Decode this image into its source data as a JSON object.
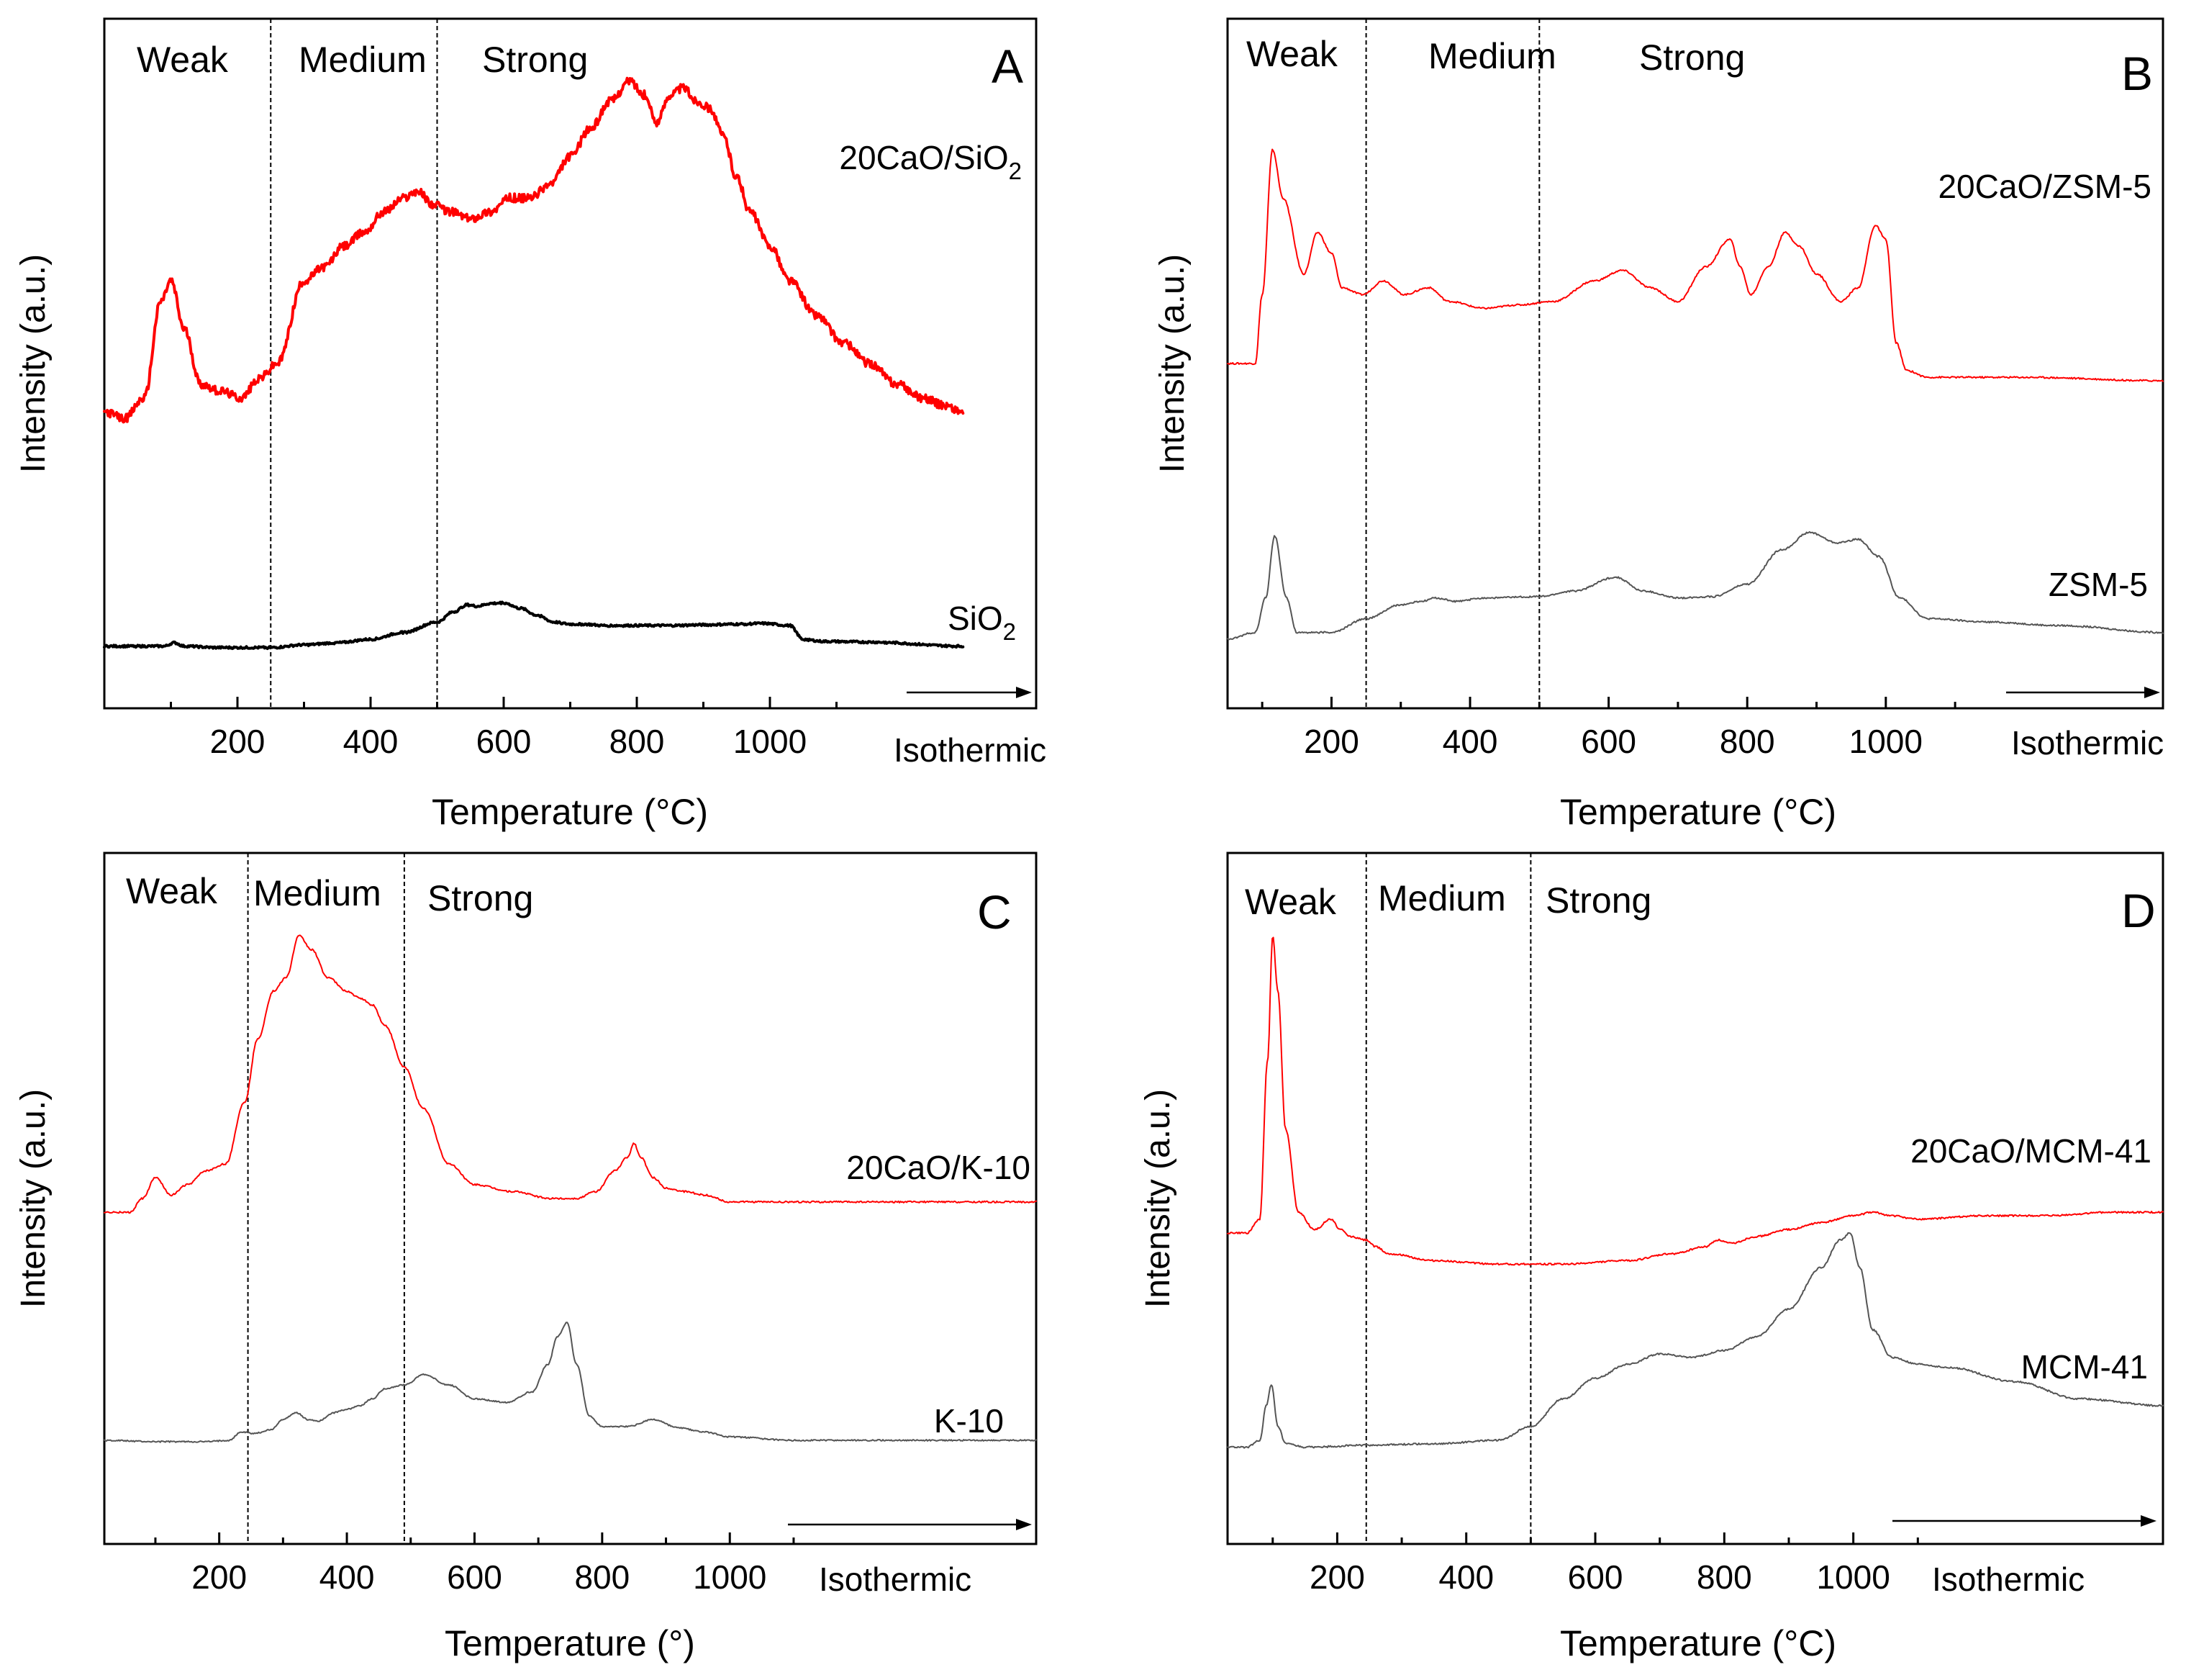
{
  "figure": {
    "description_panels": [
      "A",
      "B",
      "C",
      "D"
    ]
  },
  "chart_data": [
    {
      "type": "line",
      "panel": "A",
      "xlabel": "Temperature (°C)",
      "ylabel": "Intensity (a.u.)",
      "xlim": [
        0,
        1400
      ],
      "ylim": [
        0,
        1
      ],
      "x_ticks": [
        200,
        400,
        600,
        800,
        1000
      ],
      "isothermic_label": "Isothermic",
      "regions": [
        "Weak",
        "Medium",
        "Strong"
      ],
      "region_boundaries": [
        250,
        500
      ],
      "series": [
        {
          "name": "20CaO/SiO",
          "subscript": "2",
          "color": "#ff0000",
          "stroke": 4,
          "noise": 0.006,
          "x": [
            0,
            30,
            60,
            85,
            100,
            120,
            145,
            175,
            205,
            235,
            260,
            300,
            330,
            360,
            390,
            420,
            450,
            470,
            495,
            520,
            550,
            580,
            610,
            640,
            670,
            700,
            730,
            760,
            790,
            810,
            830,
            850,
            870,
            890,
            910,
            930,
            950,
            970,
            1000,
            1030,
            1070,
            1110,
            1150,
            1190,
            1230,
            1260,
            1290
          ],
          "y": [
            0.43,
            0.42,
            0.45,
            0.59,
            0.62,
            0.55,
            0.47,
            0.46,
            0.45,
            0.48,
            0.5,
            0.62,
            0.64,
            0.67,
            0.69,
            0.72,
            0.74,
            0.75,
            0.73,
            0.72,
            0.71,
            0.72,
            0.74,
            0.74,
            0.76,
            0.8,
            0.84,
            0.88,
            0.91,
            0.89,
            0.85,
            0.89,
            0.9,
            0.88,
            0.87,
            0.83,
            0.77,
            0.72,
            0.67,
            0.62,
            0.57,
            0.53,
            0.5,
            0.47,
            0.45,
            0.44,
            0.43
          ]
        },
        {
          "name": "SiO",
          "subscript": "2",
          "color": "#000000",
          "stroke": 4,
          "noise": 0.0015,
          "x": [
            0,
            50,
            90,
            105,
            120,
            170,
            250,
            300,
            350,
            400,
            450,
            500,
            525,
            545,
            560,
            580,
            600,
            625,
            650,
            675,
            700,
            720,
            750,
            800,
            850,
            900,
            950,
            990,
            1030,
            1050,
            1080,
            1150,
            1290
          ],
          "y": [
            0.09,
            0.09,
            0.09,
            0.095,
            0.09,
            0.088,
            0.088,
            0.092,
            0.095,
            0.1,
            0.11,
            0.125,
            0.14,
            0.15,
            0.148,
            0.152,
            0.153,
            0.145,
            0.135,
            0.125,
            0.122,
            0.122,
            0.12,
            0.12,
            0.12,
            0.121,
            0.122,
            0.123,
            0.12,
            0.1,
            0.097,
            0.096,
            0.09
          ]
        }
      ],
      "series_labels_text": [
        "20CaO/SiO",
        "SiO"
      ]
    },
    {
      "type": "line",
      "panel": "B",
      "xlabel": "Temperature (°C)",
      "ylabel": "Intensity (a.u.)",
      "xlim": [
        50,
        1400
      ],
      "ylim": [
        0,
        1
      ],
      "x_ticks": [
        200,
        400,
        600,
        800,
        1000
      ],
      "isothermic_label": "Isothermic",
      "regions": [
        "Weak",
        "Medium",
        "Strong"
      ],
      "region_boundaries": [
        250,
        500
      ],
      "series": [
        {
          "name": "20CaO/ZSM-5",
          "color": "#ff0000",
          "stroke": 2,
          "noise": 0.0012,
          "x": [
            50,
            90,
            100,
            115,
            130,
            160,
            180,
            200,
            215,
            245,
            275,
            305,
            340,
            370,
            420,
            470,
            520,
            580,
            620,
            660,
            700,
            740,
            775,
            790,
            805,
            830,
            855,
            875,
            900,
            935,
            960,
            985,
            1000,
            1015,
            1030,
            1060,
            1200,
            1400
          ],
          "y": [
            0.5,
            0.5,
            0.6,
            0.81,
            0.74,
            0.63,
            0.69,
            0.66,
            0.61,
            0.6,
            0.62,
            0.6,
            0.61,
            0.59,
            0.58,
            0.585,
            0.59,
            0.62,
            0.635,
            0.61,
            0.59,
            0.64,
            0.68,
            0.64,
            0.6,
            0.64,
            0.69,
            0.67,
            0.63,
            0.59,
            0.61,
            0.7,
            0.68,
            0.53,
            0.49,
            0.48,
            0.48,
            0.475
          ]
        },
        {
          "name": "ZSM-5",
          "color": "#555555",
          "stroke": 2,
          "noise": 0.0012,
          "x": [
            50,
            90,
            105,
            118,
            135,
            150,
            200,
            250,
            300,
            330,
            350,
            380,
            420,
            500,
            550,
            610,
            650,
            700,
            750,
            800,
            850,
            890,
            930,
            960,
            990,
            1020,
            1060,
            1150,
            1250,
            1400
          ],
          "y": [
            0.1,
            0.11,
            0.16,
            0.25,
            0.16,
            0.11,
            0.11,
            0.13,
            0.15,
            0.155,
            0.16,
            0.155,
            0.16,
            0.162,
            0.17,
            0.19,
            0.17,
            0.16,
            0.162,
            0.18,
            0.23,
            0.255,
            0.24,
            0.245,
            0.22,
            0.16,
            0.13,
            0.125,
            0.12,
            0.11
          ]
        }
      ],
      "series_labels_text": [
        "20CaO/ZSM-5",
        "ZSM-5"
      ]
    },
    {
      "type": "line",
      "panel": "C",
      "xlabel": "Temperature (°)",
      "ylabel": "Intensity (a.u.)",
      "xlim": [
        20,
        1480
      ],
      "ylim": [
        0,
        1
      ],
      "x_ticks": [
        200,
        400,
        600,
        800,
        1000
      ],
      "isothermic_label": "Isothermic",
      "regions": [
        "Weak",
        "Medium",
        "Strong"
      ],
      "region_boundaries": [
        245,
        490
      ],
      "series": [
        {
          "name": "20CaO/K-10",
          "color": "#ff0000",
          "stroke": 2,
          "noise": 0.0012,
          "x": [
            20,
            60,
            80,
            100,
            125,
            150,
            180,
            210,
            240,
            260,
            285,
            305,
            325,
            345,
            370,
            400,
            420,
            440,
            460,
            490,
            520,
            560,
            600,
            660,
            720,
            760,
            790,
            820,
            840,
            850,
            860,
            880,
            900,
            930,
            960,
            1000,
            1100,
            1300,
            1480
          ],
          "y": [
            0.48,
            0.48,
            0.5,
            0.53,
            0.505,
            0.52,
            0.54,
            0.55,
            0.64,
            0.73,
            0.8,
            0.82,
            0.88,
            0.86,
            0.82,
            0.8,
            0.79,
            0.78,
            0.75,
            0.69,
            0.63,
            0.55,
            0.52,
            0.51,
            0.5,
            0.5,
            0.51,
            0.54,
            0.56,
            0.58,
            0.56,
            0.53,
            0.515,
            0.51,
            0.505,
            0.495,
            0.495,
            0.495,
            0.495
          ]
        },
        {
          "name": "K-10",
          "color": "#555555",
          "stroke": 2,
          "noise": 0.001,
          "x": [
            20,
            100,
            180,
            215,
            235,
            255,
            280,
            300,
            320,
            340,
            355,
            380,
            400,
            420,
            440,
            460,
            490,
            520,
            560,
            600,
            650,
            690,
            715,
            730,
            745,
            760,
            780,
            800,
            840,
            880,
            920,
            960,
            1000,
            1100,
            1300,
            1480
          ],
          "y": [
            0.15,
            0.148,
            0.148,
            0.15,
            0.162,
            0.16,
            0.165,
            0.18,
            0.19,
            0.18,
            0.178,
            0.19,
            0.195,
            0.2,
            0.21,
            0.225,
            0.23,
            0.245,
            0.23,
            0.21,
            0.205,
            0.22,
            0.26,
            0.3,
            0.32,
            0.26,
            0.185,
            0.17,
            0.17,
            0.18,
            0.168,
            0.162,
            0.155,
            0.15,
            0.15,
            0.15
          ]
        }
      ],
      "series_labels_text": [
        "20CaO/K-10",
        "K-10"
      ]
    },
    {
      "type": "line",
      "panel": "D",
      "xlabel": "Temperature (°C)",
      "ylabel": "Intensity (a.u.)",
      "xlim": [
        30,
        1480
      ],
      "ylim": [
        0,
        1
      ],
      "x_ticks": [
        200,
        400,
        600,
        800,
        1000
      ],
      "isothermic_label": "Isothermic",
      "regions": [
        "Weak",
        "Medium",
        "Strong"
      ],
      "region_boundaries": [
        245,
        500
      ],
      "series": [
        {
          "name": "20CaO/MCM-41",
          "color": "#ff0000",
          "stroke": 2,
          "noise": 0.0012,
          "x": [
            30,
            60,
            80,
            92,
            100,
            108,
            120,
            140,
            165,
            190,
            205,
            220,
            245,
            260,
            280,
            350,
            450,
            550,
            650,
            720,
            770,
            790,
            810,
            850,
            900,
            950,
            1000,
            1030,
            1060,
            1100,
            1200,
            1300,
            1400,
            1480
          ],
          "y": [
            0.45,
            0.45,
            0.47,
            0.7,
            0.88,
            0.8,
            0.6,
            0.48,
            0.455,
            0.47,
            0.455,
            0.445,
            0.44,
            0.43,
            0.42,
            0.41,
            0.405,
            0.405,
            0.41,
            0.42,
            0.43,
            0.44,
            0.435,
            0.445,
            0.455,
            0.465,
            0.475,
            0.48,
            0.475,
            0.47,
            0.475,
            0.475,
            0.48,
            0.48
          ]
        },
        {
          "name": "MCM-41",
          "color": "#555555",
          "stroke": 2,
          "noise": 0.0012,
          "x": [
            30,
            60,
            80,
            90,
            98,
            108,
            120,
            150,
            250,
            350,
            450,
            500,
            550,
            600,
            650,
            700,
            750,
            800,
            850,
            900,
            950,
            980,
            995,
            1010,
            1030,
            1060,
            1100,
            1150,
            1250,
            1350,
            1480
          ],
          "y": [
            0.14,
            0.14,
            0.15,
            0.2,
            0.23,
            0.17,
            0.145,
            0.14,
            0.143,
            0.145,
            0.15,
            0.17,
            0.21,
            0.24,
            0.26,
            0.275,
            0.27,
            0.28,
            0.3,
            0.34,
            0.4,
            0.44,
            0.45,
            0.4,
            0.31,
            0.27,
            0.26,
            0.255,
            0.235,
            0.21,
            0.2
          ]
        }
      ],
      "series_labels_text": [
        "20CaO/MCM-41",
        "MCM-41"
      ]
    }
  ]
}
